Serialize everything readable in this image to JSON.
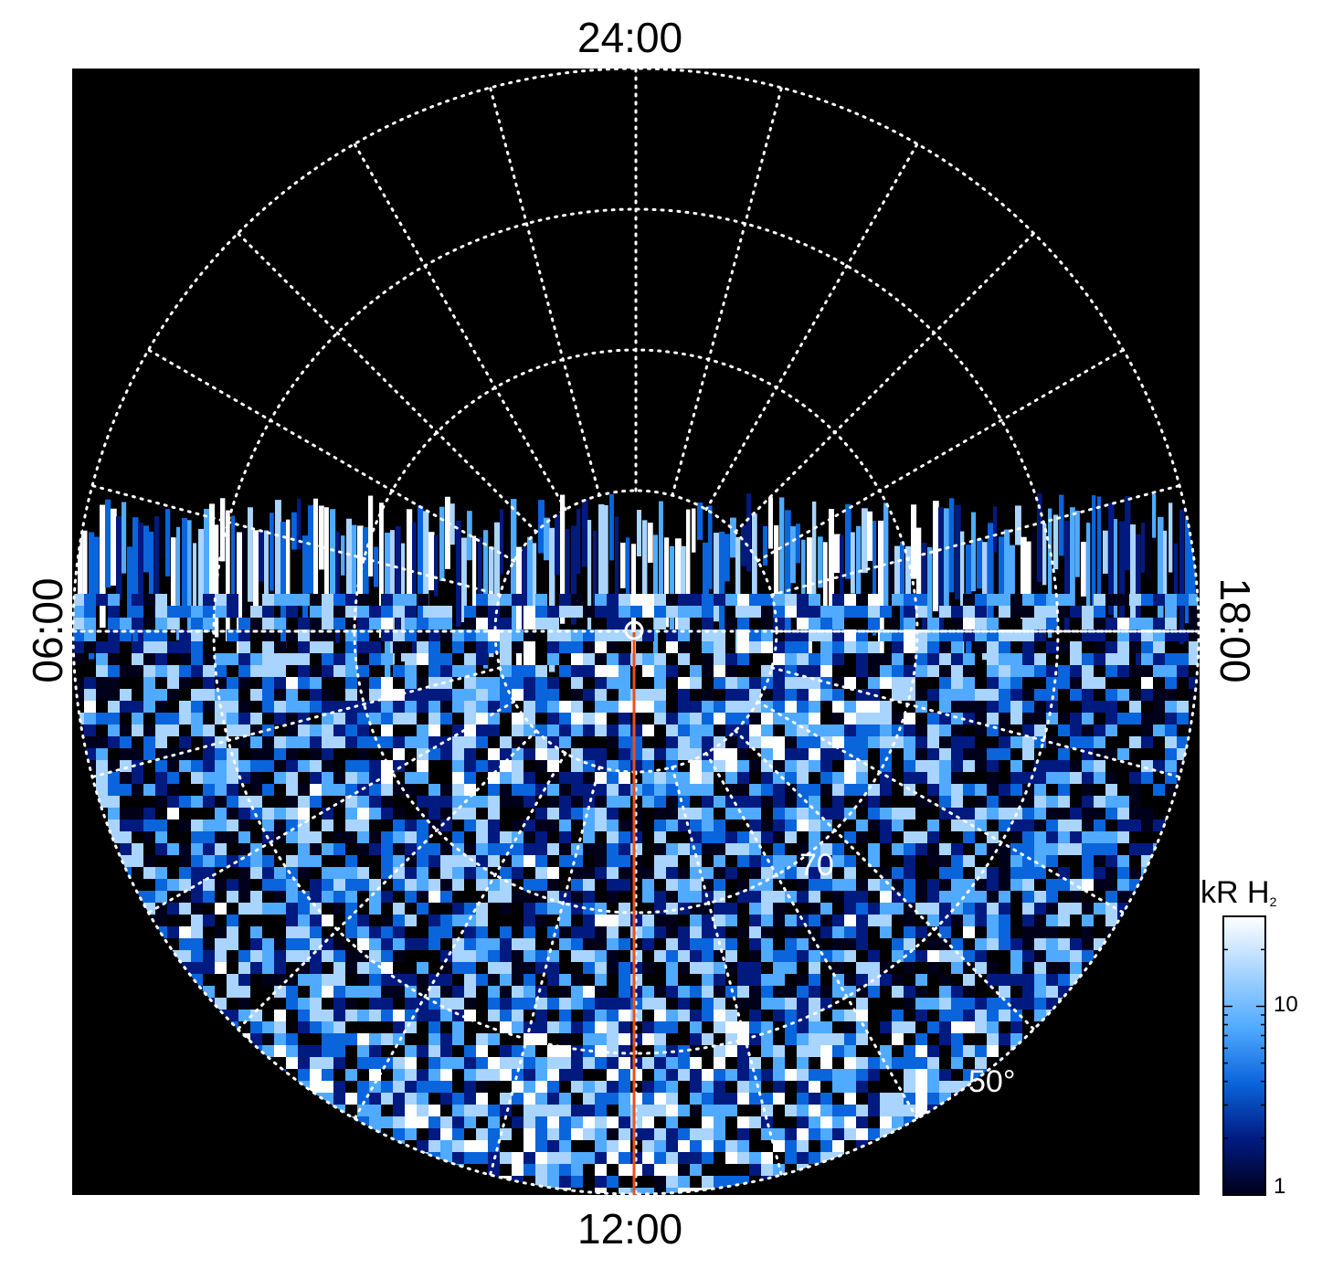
{
  "figure": {
    "local_time_labels": {
      "top": "24:00",
      "bottom": "12:00",
      "left": "06:00",
      "right": "18:00"
    },
    "latitude_labels": {
      "inner": "70",
      "outer": "50°"
    },
    "colorbar": {
      "title_main": "kR H",
      "title_sub": "2",
      "tick_10": "10",
      "tick_1": "1",
      "scale": "log",
      "range": [
        1,
        30
      ],
      "colors": [
        "#00001a",
        "#001a80",
        "#0a64dc",
        "#50aaff",
        "#a8d4ff",
        "#ffffff"
      ]
    },
    "colors": {
      "background": "#000000",
      "grid": "#ffffff",
      "meridian_line": "#e8501e"
    },
    "grid": {
      "latitude_circles_deg": [
        80,
        70,
        60,
        50
      ],
      "meridian_spacing_hours": 1
    }
  }
}
